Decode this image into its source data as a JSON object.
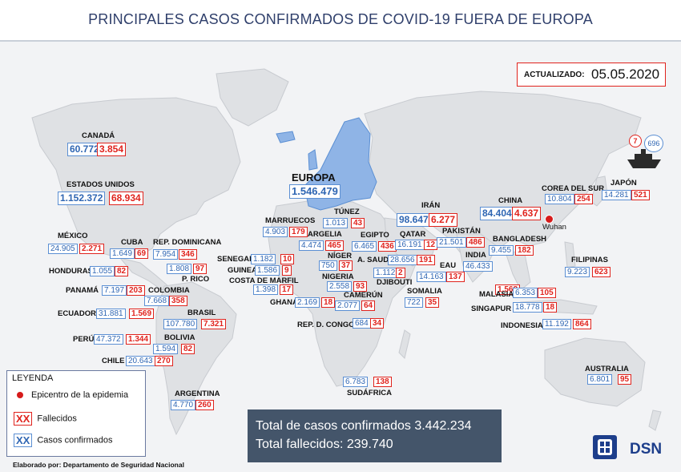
{
  "title": "PRINCIPALES CASOS CONFIRMADOS DE COVID-19 FUERA DE EUROPA",
  "update": {
    "label": "ACTUALIZADO:",
    "date": "05.05.2020"
  },
  "colors": {
    "confirmed": "#2f66b3",
    "deaths": "#e0231d",
    "europe": "#8fb4e6",
    "land": "#dfe1e4",
    "sea": "#f2f3f5",
    "title": "#2f3f6b",
    "totals_bg": "#44556a"
  },
  "regions": [
    {
      "name": "CANADÁ",
      "confirmed": "60.772",
      "deaths": "3.854"
    },
    {
      "name": "ESTADOS UNIDOS",
      "confirmed": "1.152.372",
      "deaths": "68.934"
    },
    {
      "name": "MÉXICO",
      "confirmed": "24.905",
      "deaths": "2.271"
    },
    {
      "name": "CUBA",
      "confirmed": "1.649",
      "deaths": "69"
    },
    {
      "name": "REP. DOMINICANA",
      "confirmed": "7.954",
      "deaths": "346"
    },
    {
      "name": "P. RICO",
      "confirmed": "1.808",
      "deaths": "97"
    },
    {
      "name": "HONDURAS",
      "confirmed": "1.055",
      "deaths": "82"
    },
    {
      "name": "PANAMÁ",
      "confirmed": "7.197",
      "deaths": "203"
    },
    {
      "name": "COLOMBIA",
      "confirmed": "7.668",
      "deaths": "358"
    },
    {
      "name": "ECUADOR",
      "confirmed": "31.881",
      "deaths": "1.569"
    },
    {
      "name": "BRASIL",
      "confirmed": "107.780",
      "deaths": "7.321"
    },
    {
      "name": "PERÚ",
      "confirmed": "47.372",
      "deaths": "1.344"
    },
    {
      "name": "BOLIVIA",
      "confirmed": "1.594",
      "deaths": "82"
    },
    {
      "name": "CHILE",
      "confirmed": "20.643",
      "deaths": "270"
    },
    {
      "name": "ARGENTINA",
      "confirmed": "4.770",
      "deaths": "260"
    },
    {
      "name": "EUROPA",
      "confirmed": "1.546.479",
      "deaths": ""
    },
    {
      "name": "MARRUECOS",
      "confirmed": "4.903",
      "deaths": "179"
    },
    {
      "name": "TÚNEZ",
      "confirmed": "1.013",
      "deaths": "43"
    },
    {
      "name": "ARGELIA",
      "confirmed": "4.474",
      "deaths": "465"
    },
    {
      "name": "EGIPTO",
      "confirmed": "6.465",
      "deaths": "436"
    },
    {
      "name": "SENEGAL",
      "confirmed": "1.182",
      "deaths": "10"
    },
    {
      "name": "GUINEA",
      "confirmed": "1.586",
      "deaths": "9"
    },
    {
      "name": "COSTA DE MARFIL",
      "confirmed": "1.398",
      "deaths": "17"
    },
    {
      "name": "NÍGER",
      "confirmed": "750",
      "deaths": "37"
    },
    {
      "name": "NIGERIA",
      "confirmed": "2.558",
      "deaths": "93"
    },
    {
      "name": "GHANA",
      "confirmed": "2.169",
      "deaths": "18"
    },
    {
      "name": "CAMERÚN",
      "confirmed": "2.077",
      "deaths": "64"
    },
    {
      "name": "REP. D. CONGO",
      "confirmed": "684",
      "deaths": "34"
    },
    {
      "name": "SUDÁFRICA",
      "confirmed": "6.783",
      "deaths": "138"
    },
    {
      "name": "IRÁN",
      "confirmed": "98.647",
      "deaths": "6.277"
    },
    {
      "name": "QATAR",
      "confirmed": "16.191",
      "deaths": "12"
    },
    {
      "name": "A. SAUDÍ",
      "confirmed": "28.656",
      "deaths": "191"
    },
    {
      "name": "DJIBOUTI",
      "confirmed": "1.112",
      "deaths": "2"
    },
    {
      "name": "EAU",
      "confirmed": "14.163",
      "deaths": "137"
    },
    {
      "name": "SOMALIA",
      "confirmed": "722",
      "deaths": "35"
    },
    {
      "name": "PAKISTÁN",
      "confirmed": "21.501",
      "deaths": "486"
    },
    {
      "name": "INDIA",
      "confirmed": "46.433",
      "deaths": "1.568"
    },
    {
      "name": "BANGLADESH",
      "confirmed": "9.455",
      "deaths": "182"
    },
    {
      "name": "CHINA",
      "confirmed": "84.404",
      "deaths": "4.637"
    },
    {
      "name": "COREA DEL SUR",
      "confirmed": "10.804",
      "deaths": "254"
    },
    {
      "name": "JAPÓN",
      "confirmed": "14.281",
      "deaths": "521"
    },
    {
      "name": "FILIPINAS",
      "confirmed": "9.223",
      "deaths": "623"
    },
    {
      "name": "MALASIA",
      "confirmed": "6.353",
      "deaths": "105"
    },
    {
      "name": "SINGAPUR",
      "confirmed": "18.778",
      "deaths": "18"
    },
    {
      "name": "INDONESIA",
      "confirmed": "11.192",
      "deaths": "864"
    },
    {
      "name": "AUSTRALIA",
      "confirmed": "6.801",
      "deaths": "95"
    }
  ],
  "cruise": {
    "deaths": "7",
    "confirmed": "696"
  },
  "epicenter": {
    "label": "Wuhan"
  },
  "legend": {
    "title": "LEYENDA",
    "items": [
      {
        "key": "",
        "label": "Epicentro de la epidemia"
      },
      {
        "key": "XX",
        "label": "Fallecidos"
      },
      {
        "key": "XX",
        "label": "Casos confirmados"
      }
    ]
  },
  "totals": {
    "confirmed": "Total de casos confirmados 3.442.234",
    "deaths": "Total fallecidos: 239.740"
  },
  "credit": "Elaborado por: Departamento de Seguridad Nacional",
  "logo": {
    "text": "DSN"
  }
}
